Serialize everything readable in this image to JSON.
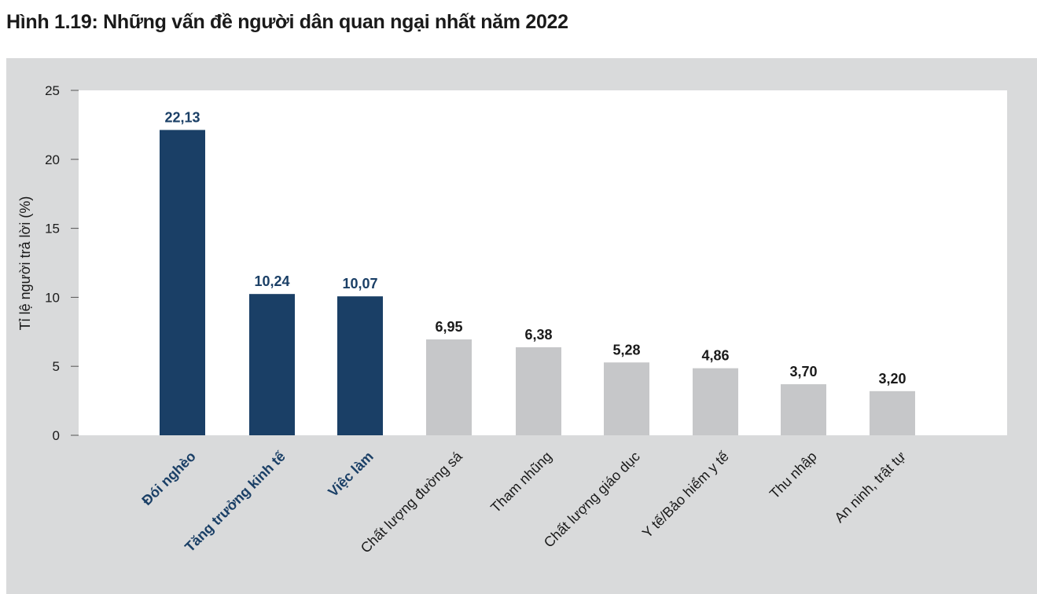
{
  "title": "Hình 1.19: Những vấn đề người dân quan ngại nhất năm 2022",
  "colors": {
    "highlight": "#1a3f66",
    "normal": "#c6c7c9",
    "background": "#d9dadb",
    "plot_area": "#ffffff",
    "text": "#1a1a1a"
  },
  "chart_data": {
    "type": "bar",
    "ylabel": "Tỉ lệ người trả lời (%)",
    "xlabel": "",
    "ylim": [
      0,
      25
    ],
    "yticks": [
      0,
      5,
      10,
      15,
      20,
      25
    ],
    "grid": false,
    "categories": [
      "Đói nghèo",
      "Tăng trưởng kinh tế",
      "Việc làm",
      "Chất lượng đường sá",
      "Tham nhũng",
      "Chất lượng giáo dục",
      "Y tế/Bảo hiểm y tế",
      "Thu nhập",
      "An ninh, trật tự"
    ],
    "values": [
      22.13,
      10.24,
      10.07,
      6.95,
      6.38,
      5.28,
      4.86,
      3.7,
      3.2
    ],
    "value_labels": [
      "22,13",
      "10,24",
      "10,07",
      "6,95",
      "6,38",
      "5,28",
      "4,86",
      "3,70",
      "3,20"
    ],
    "highlighted": [
      true,
      true,
      true,
      false,
      false,
      false,
      false,
      false,
      false
    ]
  }
}
